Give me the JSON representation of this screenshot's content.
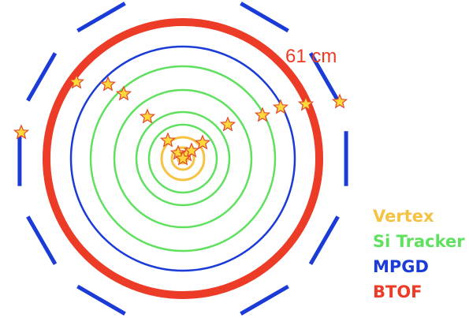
{
  "radius_label": "61 cm",
  "legend": [
    {
      "label": "Vertex",
      "color": "#f5c242"
    },
    {
      "label": "Si Tracker",
      "color": "#5fe05f"
    },
    {
      "label": "MPGD",
      "color": "#1a3bd6"
    },
    {
      "label": "BTOF",
      "color": "#ec3b26"
    }
  ],
  "colors": {
    "vertex": "#f5c242",
    "si_tracker": "#5fe05f",
    "mpgd": "#1a3bd6",
    "btof": "#ec3b26",
    "hit_fill": "#ffd83a",
    "hit_stroke": "#e0482e"
  },
  "hit_marker_icon": "star-icon"
}
